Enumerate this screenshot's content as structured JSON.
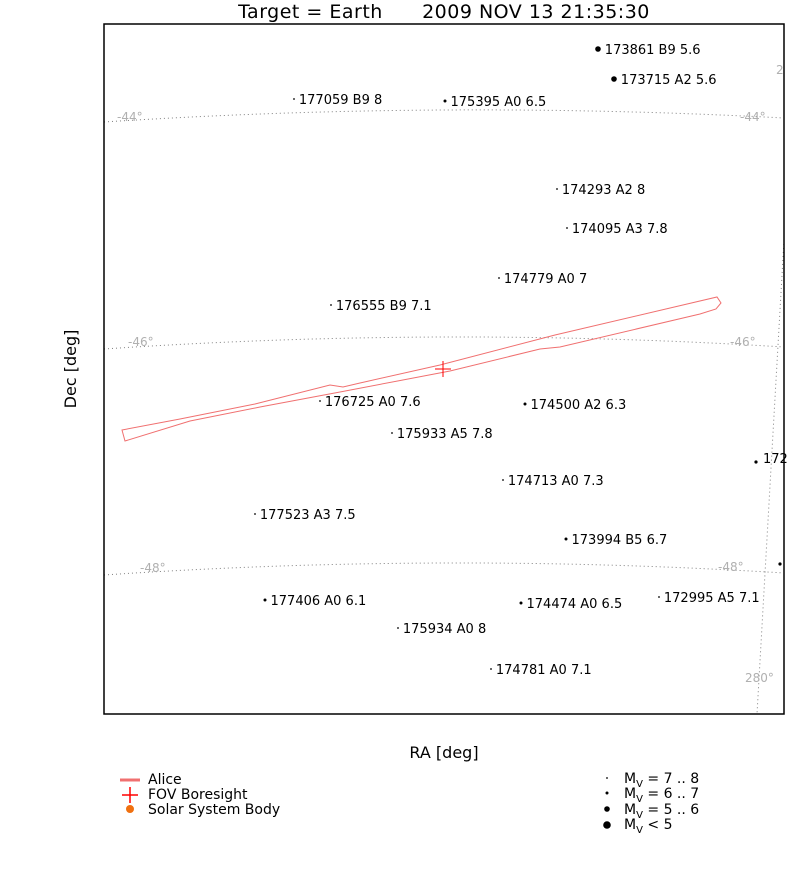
{
  "chart_data": {
    "type": "scatter",
    "title": "Target = Earth      2009 NOV 13 21:35:30",
    "xlabel": "RA [deg]",
    "ylabel": "Dec [deg]",
    "grid_labels": {
      "dec": [
        "-44°",
        "-46°",
        "-48°"
      ],
      "ra": [
        "280°"
      ],
      "clipped": [
        "2",
        "172"
      ]
    },
    "colors": {
      "fov": "#f07070",
      "boresight": "#ff0000",
      "solar_system": "#f07010",
      "grid": "#a0a0a0",
      "grid_label": "#b0b0b0"
    },
    "stars": [
      {
        "label": "173861 B9 5.6",
        "mag_class": 3
      },
      {
        "label": "173715 A2 5.6",
        "mag_class": 3
      },
      {
        "label": "177059 B9 8",
        "mag_class": 1
      },
      {
        "label": "175395 A0 6.5",
        "mag_class": 2
      },
      {
        "label": "174293 A2 8",
        "mag_class": 1
      },
      {
        "label": "174095 A3 7.8",
        "mag_class": 1
      },
      {
        "label": "174779 A0 7",
        "mag_class": 1
      },
      {
        "label": "176555 B9 7.1",
        "mag_class": 1
      },
      {
        "label": "176725 A0 7.6",
        "mag_class": 1
      },
      {
        "label": "174500 A2 6.3",
        "mag_class": 2
      },
      {
        "label": "175933 A5 7.8",
        "mag_class": 1
      },
      {
        "label": "174713 A0 7.3",
        "mag_class": 1
      },
      {
        "label": "177523 A3 7.5",
        "mag_class": 1
      },
      {
        "label": "173994 B5 6.7",
        "mag_class": 2
      },
      {
        "label": "177406 A0 6.1",
        "mag_class": 2
      },
      {
        "label": "174474 A0 6.5",
        "mag_class": 2
      },
      {
        "label": "172995 A5 7.1",
        "mag_class": 1
      },
      {
        "label": "175934 A0 8",
        "mag_class": 1
      },
      {
        "label": "174781 A0 7.1",
        "mag_class": 1
      }
    ],
    "legend": {
      "fov": "Alice",
      "boresight": "FOV Boresight",
      "solar_system": "Solar System Body"
    },
    "magnitude_legend": [
      {
        "range": "= 7 .. 8"
      },
      {
        "range": "= 6 .. 7"
      },
      {
        "range": "= 5 .. 6"
      },
      {
        "range": "< 5"
      }
    ],
    "magnitude_symbol": "M",
    "magnitude_subscript": "V"
  }
}
